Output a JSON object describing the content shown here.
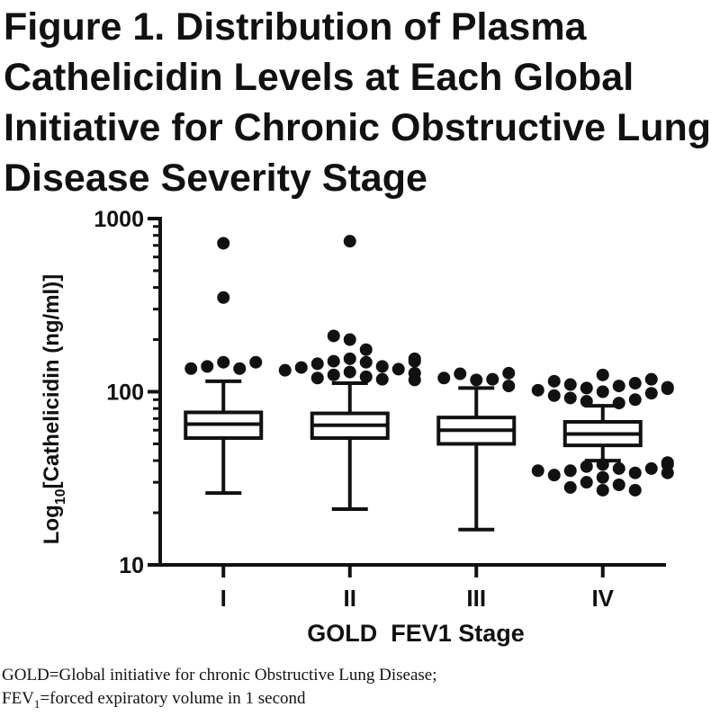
{
  "figure": {
    "title": "Figure 1. Distribution of Plasma Cathelicidin Levels at Each Global Initiative for Chronic Obstructive Lung Disease Severity Stage",
    "footnote_line1": "GOLD=Global initiative for chronic Obstructive Lung Disease;",
    "footnote_line2_prefix": "FEV",
    "footnote_line2_sub": "1",
    "footnote_line2_rest": "=forced expiratory volume in 1 second"
  },
  "chart_data": {
    "type": "box",
    "xlabel": "GOLD  FEV1 Stage",
    "ylabel_prefix": "Log",
    "ylabel_sub": "10",
    "ylabel_rest": "[Cathelicidin (ng/ml)]",
    "yscale": "log",
    "ylim": [
      10,
      1000
    ],
    "yticks": [
      10,
      100,
      1000
    ],
    "ytick_labels": [
      "10",
      "100",
      "1000"
    ],
    "categories": [
      "I",
      "II",
      "III",
      "IV"
    ],
    "boxes": [
      {
        "category": "I",
        "whisker_low": 26,
        "q1": 54,
        "median": 65,
        "q3": 76,
        "whisker_high": 115,
        "outliers": [
          148,
          140,
          136,
          136,
          148,
          350,
          720
        ]
      },
      {
        "category": "II",
        "whisker_low": 21,
        "q1": 54,
        "median": 64,
        "q3": 75,
        "whisker_high": 112,
        "outliers": [
          155,
          150,
          148,
          145,
          140,
          138,
          135,
          133,
          130,
          128,
          125,
          122,
          120,
          118,
          117,
          150,
          155,
          175,
          200,
          210,
          740
        ]
      },
      {
        "category": "III",
        "whisker_low": 16,
        "q1": 50,
        "median": 60,
        "q3": 71,
        "whisker_high": 105,
        "outliers": [
          117,
          127,
          118,
          120,
          128,
          108
        ]
      },
      {
        "category": "IV",
        "whisker_low": 40,
        "q1": 49,
        "median": 57,
        "q3": 67,
        "whisker_high": 83,
        "outliers": [
          100,
          105,
          108,
          110,
          112,
          115,
          125,
          118,
          102,
          98,
          95,
          92,
          88,
          86,
          90,
          104,
          106,
          38,
          37,
          36,
          35,
          34,
          33,
          32,
          30,
          29,
          28,
          27,
          27,
          36,
          35,
          34,
          38,
          39
        ]
      }
    ],
    "grid": false,
    "legend": "none"
  }
}
